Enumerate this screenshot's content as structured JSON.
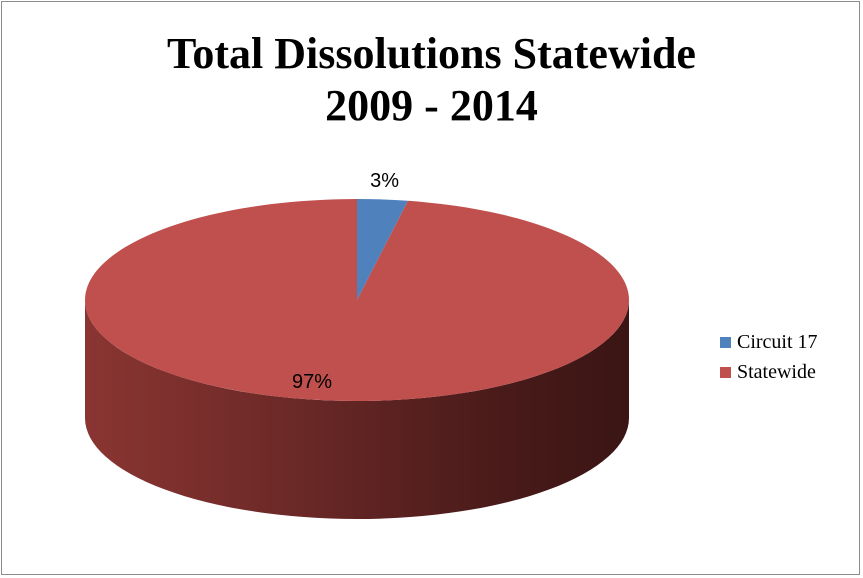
{
  "chart_data": {
    "type": "pie",
    "title": "Total Dissolutions  Statewide",
    "subtitle": "2009 - 2014",
    "categories": [
      "Circuit 17",
      "Statewide"
    ],
    "values": [
      3,
      97
    ],
    "data_labels": [
      "3%",
      "97%"
    ],
    "colors": [
      "#4f81bd",
      "#c0504d"
    ],
    "legend_position": "right",
    "style": "3d"
  }
}
